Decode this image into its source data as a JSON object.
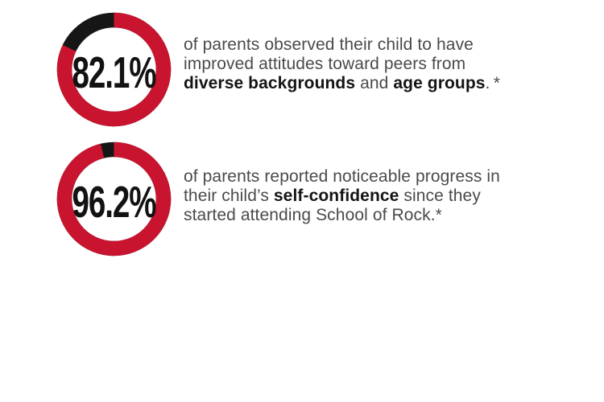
{
  "colors": {
    "background": "#ffffff",
    "ring_red": "#C8142F",
    "ring_dark": "#161616",
    "percent_text": "#121212",
    "body_text": "#4a4a4a",
    "body_text_bold": "#141414"
  },
  "chart_data": [
    {
      "type": "pie",
      "subtype": "donut",
      "value_label": "82.1%",
      "segments": [
        {
          "label": "parents observing improved attitudes",
          "value": 82.1,
          "color": "#C8142F"
        },
        {
          "label": "remainder",
          "value": 17.9,
          "color": "#161616"
        }
      ],
      "start": "12-o-clock",
      "direction": "clockwise",
      "center_text": "82.1%"
    },
    {
      "type": "pie",
      "subtype": "donut",
      "value_label": "96.2%",
      "segments": [
        {
          "label": "parents reporting self-confidence progress",
          "value": 96.2,
          "color": "#C8142F"
        },
        {
          "label": "remainder",
          "value": 3.8,
          "color": "#161616"
        }
      ],
      "start": "12-o-clock",
      "direction": "clockwise",
      "center_text": "96.2%"
    }
  ],
  "stats": [
    {
      "percent_label": "82.1%",
      "lines": [
        [
          {
            "text": "of parents observed their child to have",
            "bold": false
          }
        ],
        [
          {
            "text": "improved attitudes toward peers from",
            "bold": false
          }
        ],
        [
          {
            "text": "diverse backgrounds",
            "bold": true
          },
          {
            "text": " and ",
            "bold": false
          },
          {
            "text": "age groups",
            "bold": true
          },
          {
            "text": ". *",
            "bold": false
          }
        ]
      ]
    },
    {
      "percent_label": "96.2%",
      "lines": [
        [
          {
            "text": "of parents reported noticeable progress in",
            "bold": false
          }
        ],
        [
          {
            "text": "their child’s ",
            "bold": false
          },
          {
            "text": "self-confidence",
            "bold": true
          },
          {
            "text": " since they",
            "bold": false
          }
        ],
        [
          {
            "text": "started attending School of Rock.*",
            "bold": false
          }
        ]
      ]
    }
  ]
}
